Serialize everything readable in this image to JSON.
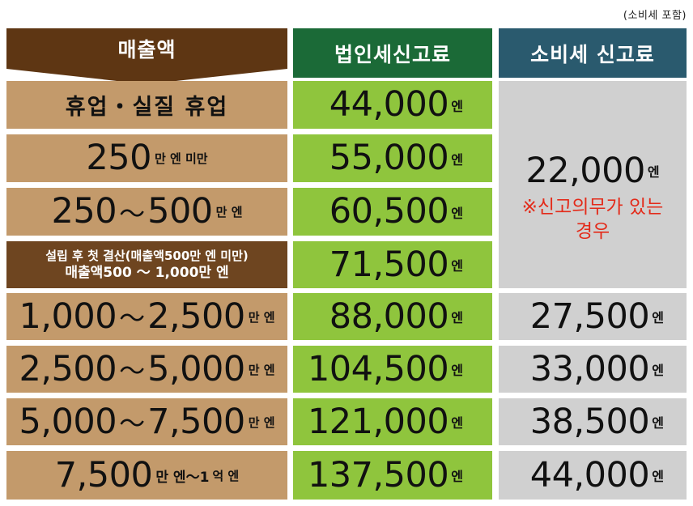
{
  "note": "(소비세 포함)",
  "headers": {
    "sales": "매출액",
    "corporate": "법인세신고료",
    "consumption": "소비세 신고료"
  },
  "unit_yen": "엔",
  "rows": [
    {
      "sales": "휴업・실질 휴업",
      "corporate": "44,000"
    },
    {
      "sales_num": "250",
      "sales_suffix": "만 엔 미만",
      "corporate": "55,000"
    },
    {
      "sales_from": "250",
      "tilde": "～",
      "sales_to": "500",
      "sales_suffix": "만 엔",
      "corporate": "60,500"
    },
    {
      "sales_line1": "설립 후 첫 결산(매출액500만 엔 미만)",
      "sales_line2": "매출액500 ～ 1,000만 엔",
      "corporate": "71,500"
    },
    {
      "sales_from": "1,000",
      "tilde": "～",
      "sales_to": "2,500",
      "sales_suffix": "만 엔",
      "corporate": "88,000",
      "consumption": "27,500"
    },
    {
      "sales_from": "2,500",
      "tilde": "～",
      "sales_to": "5,000",
      "sales_suffix": "만 엔",
      "corporate": "104,500",
      "consumption": "33,000"
    },
    {
      "sales_from": "5,000",
      "tilde": "～",
      "sales_to": "7,500",
      "sales_suffix": "만 엔",
      "corporate": "121,000",
      "consumption": "38,500"
    },
    {
      "sales_from": "7,500",
      "sales_mid": "만 엔～1",
      "sales_suffix": "억 엔",
      "corporate": "137,500",
      "consumption": "44,000"
    }
  ],
  "merged_consumption": {
    "value": "22,000",
    "note": "※신고의무가 있는 경우"
  },
  "colors": {
    "sales_header": "#5e3613",
    "corporate_header": "#1b6a37",
    "consumption_header": "#2a5a6e",
    "sales_cell": "#c39a6b",
    "sales_special": "#6e4520",
    "corporate_cell": "#8fc53d",
    "consumption_cell": "#d0d0d0",
    "duty_text": "#e32b1a"
  }
}
